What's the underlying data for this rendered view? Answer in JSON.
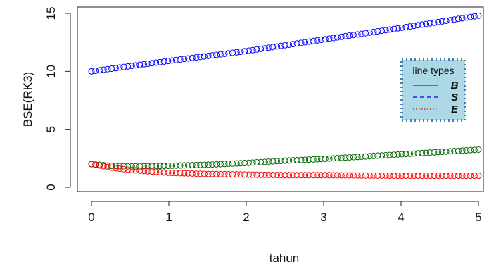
{
  "chart_data": {
    "type": "scatter",
    "title": "",
    "xlabel": "tahun",
    "ylabel": "BSE(RK3)",
    "xlim": [
      0,
      5
    ],
    "ylim": [
      0,
      15
    ],
    "x_ticks": [
      "0",
      "1",
      "2",
      "3",
      "4",
      "5"
    ],
    "y_ticks": [
      "0",
      "5",
      "10",
      "15"
    ],
    "grid": false,
    "legend": {
      "title": "line types",
      "position": "right",
      "background": "#add8e6",
      "border_color": "#4a7fb5",
      "entries": [
        {
          "label": "B",
          "color": "#006400",
          "line_style": "solid"
        },
        {
          "label": "S",
          "color": "#0000ff",
          "line_style": "dashed"
        },
        {
          "label": "E",
          "color": "#ff0000",
          "line_style": "dotted"
        }
      ]
    },
    "series": [
      {
        "name": "S",
        "color": "#0000ff",
        "marker": "open-circle",
        "points": [
          [
            0.0,
            10.0
          ],
          [
            1.0,
            10.9
          ],
          [
            2.0,
            11.75
          ],
          [
            3.0,
            12.75
          ],
          [
            4.0,
            13.75
          ],
          [
            5.0,
            14.8
          ]
        ]
      },
      {
        "name": "B",
        "color": "#006400",
        "marker": "open-circle",
        "points": [
          [
            0.0,
            2.0
          ],
          [
            0.25,
            1.85
          ],
          [
            0.5,
            1.8
          ],
          [
            1.0,
            1.85
          ],
          [
            1.5,
            1.95
          ],
          [
            2.0,
            2.1
          ],
          [
            2.5,
            2.3
          ],
          [
            3.0,
            2.45
          ],
          [
            3.5,
            2.65
          ],
          [
            4.0,
            2.85
          ],
          [
            4.5,
            3.05
          ],
          [
            5.0,
            3.25
          ]
        ]
      },
      {
        "name": "E",
        "color": "#ff0000",
        "marker": "open-circle",
        "points": [
          [
            0.0,
            2.0
          ],
          [
            0.25,
            1.7
          ],
          [
            0.5,
            1.5
          ],
          [
            1.0,
            1.25
          ],
          [
            1.5,
            1.15
          ],
          [
            2.0,
            1.1
          ],
          [
            2.5,
            1.05
          ],
          [
            3.0,
            1.05
          ],
          [
            3.5,
            1.02
          ],
          [
            4.0,
            1.0
          ],
          [
            4.5,
            1.0
          ],
          [
            5.0,
            1.0
          ]
        ]
      }
    ]
  }
}
